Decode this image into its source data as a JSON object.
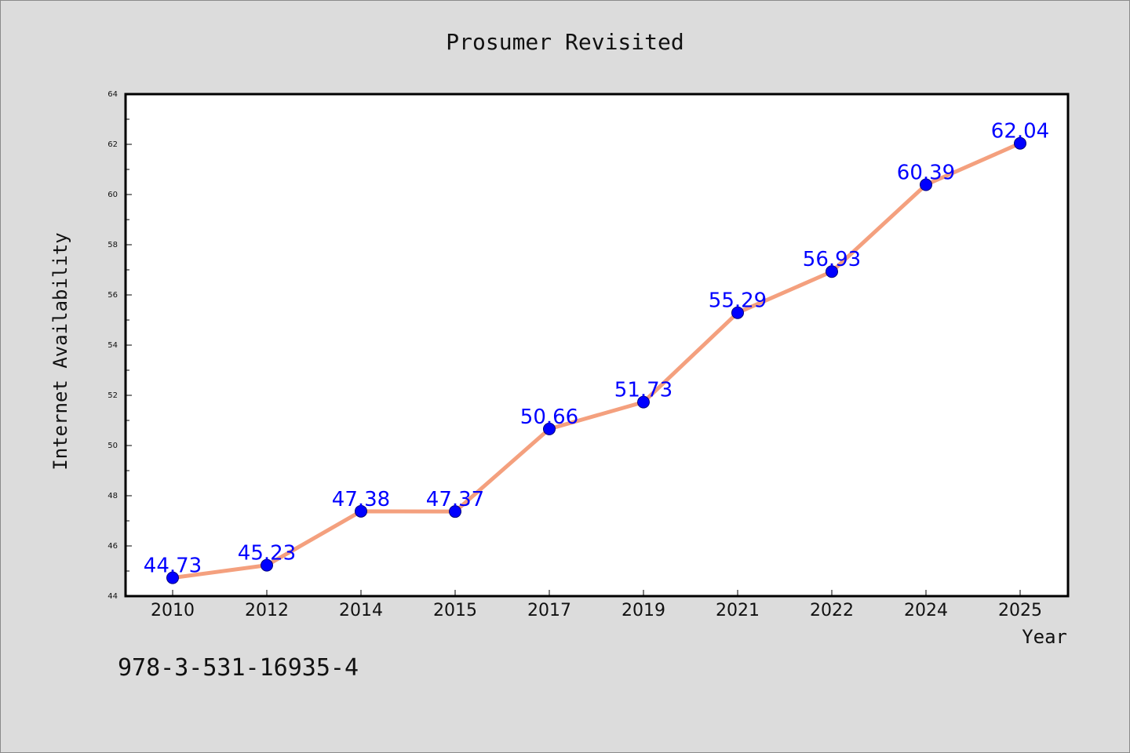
{
  "chart_data": {
    "type": "line",
    "title": "Prosumer Revisited",
    "xlabel": "Year",
    "ylabel": "Internet Availability",
    "categories": [
      "2010",
      "2012",
      "2014",
      "2015",
      "2017",
      "2019",
      "2021",
      "2022",
      "2024",
      "2025"
    ],
    "series": [
      {
        "values": [
          44.73,
          45.23,
          47.38,
          47.37,
          50.66,
          51.73,
          55.29,
          56.93,
          60.39,
          62.04
        ],
        "labels": [
          "44.73",
          "45.23",
          "47.38",
          "47.37",
          "50.66",
          "51.73",
          "55.29",
          "56.93",
          "60.39",
          "62.04"
        ],
        "line_color": "#f4a07e",
        "marker_color": "#0000ff"
      }
    ],
    "ylim": [
      44,
      64
    ],
    "yticks": [
      "44",
      "46",
      "48",
      "50",
      "52",
      "54",
      "56",
      "58",
      "60",
      "62",
      "64"
    ],
    "grid": false,
    "legend": "none"
  },
  "footer": {
    "isbn": "978-3-531-16935-4"
  }
}
